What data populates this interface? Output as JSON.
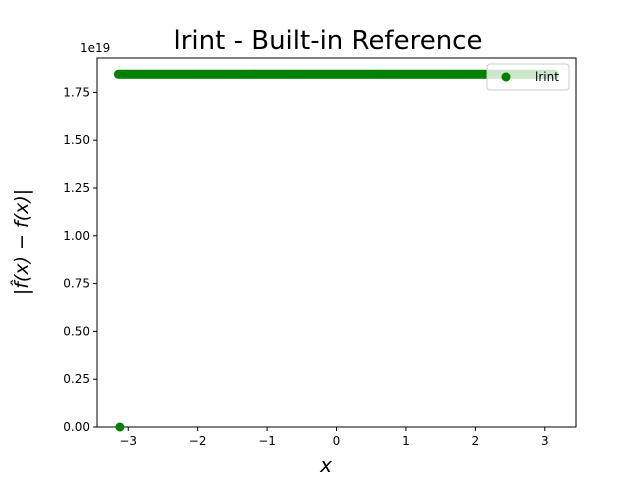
{
  "chart_data": {
    "type": "scatter",
    "title": "lrint - Built-in Reference",
    "xlabel": "x",
    "ylabel": "|f̂(x) − f(x)|",
    "y_offset_label": "1e19",
    "xlim": [
      -3.45,
      3.45
    ],
    "ylim": [
      0,
      1.93
    ],
    "x_ticks": [
      -3,
      -2,
      -1,
      0,
      1,
      2,
      3
    ],
    "x_tick_labels": [
      "−3",
      "−2",
      "−1",
      "0",
      "1",
      "2",
      "3"
    ],
    "y_ticks": [
      0,
      0.25,
      0.5,
      0.75,
      1.0,
      1.25,
      1.5,
      1.75
    ],
    "y_tick_labels": [
      "0.00",
      "0.25",
      "0.50",
      "0.75",
      "1.00",
      "1.25",
      "1.50",
      "1.75"
    ],
    "grid": false,
    "legend_position": "top-right",
    "series": [
      {
        "name": "lrint",
        "color": "#008000",
        "x_range": [
          -3.14159,
          3.14159
        ],
        "y_high": 1.8447,
        "outlier_points": [
          {
            "x": -3.12,
            "y": 0
          }
        ]
      }
    ]
  }
}
